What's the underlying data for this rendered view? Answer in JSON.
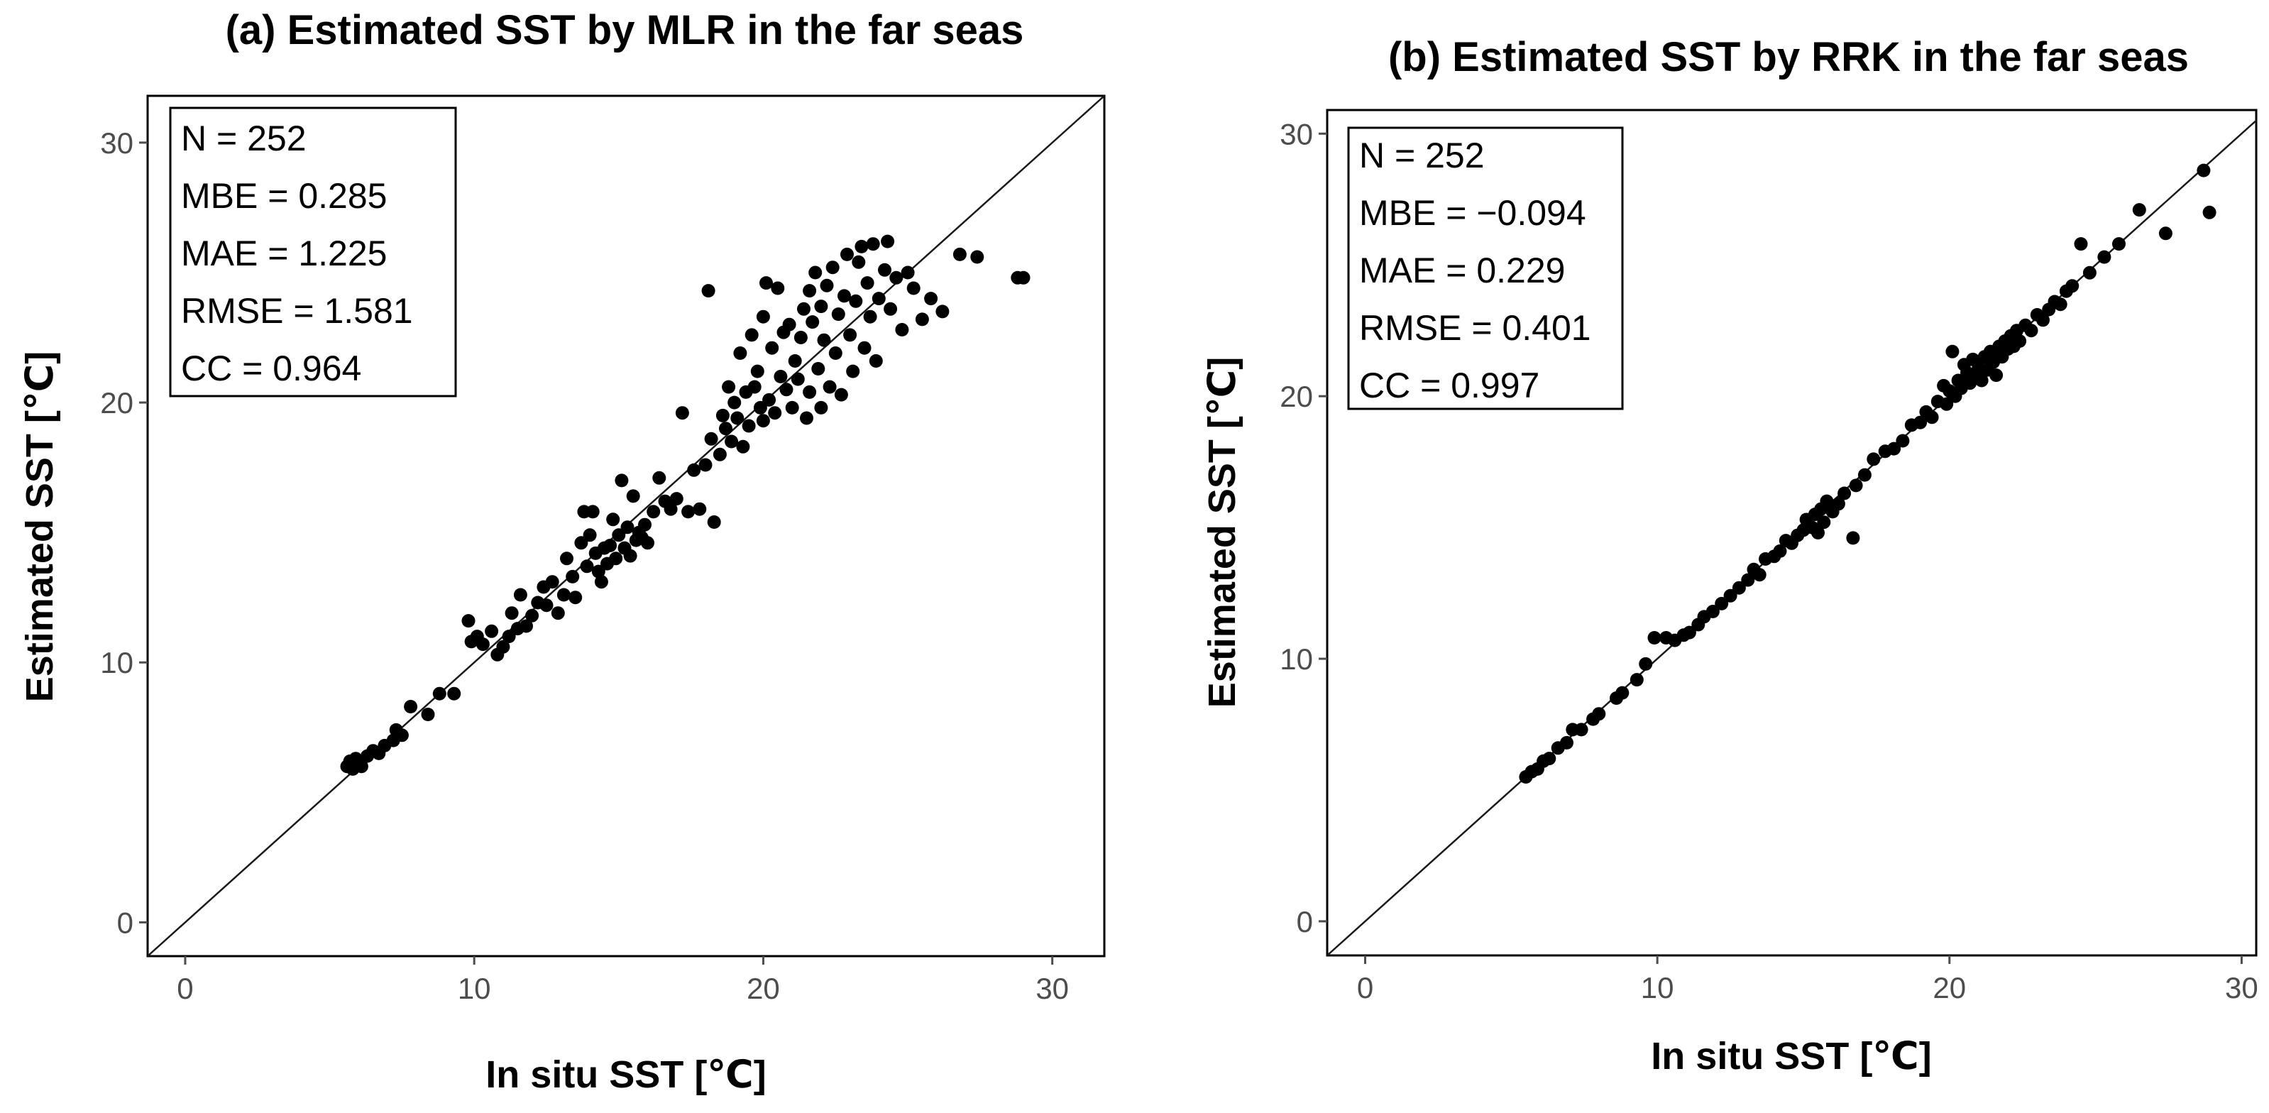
{
  "chart_data": [
    {
      "type": "scatter",
      "title": "(a) Estimated SST by MLR in the far seas",
      "xlabel": "In situ SST [℃]",
      "ylabel": "Estimated SST [℃]",
      "xlim": [
        -1.3,
        31.8
      ],
      "ylim": [
        -1.3,
        31.8
      ],
      "xticks": [
        0,
        10,
        20,
        30
      ],
      "yticks": [
        0,
        10,
        20,
        30
      ],
      "reference_line": "y = x",
      "grid": false,
      "stats_box": [
        "N = 252",
        "MBE = 0.285",
        "MAE = 1.225",
        "RMSE = 1.581",
        "CC = 0.964"
      ],
      "points": [
        [
          5.6,
          6.0
        ],
        [
          5.7,
          6.2
        ],
        [
          5.8,
          5.9
        ],
        [
          5.9,
          6.3
        ],
        [
          6.0,
          6.1
        ],
        [
          6.1,
          6.0
        ],
        [
          6.3,
          6.4
        ],
        [
          6.5,
          6.6
        ],
        [
          6.7,
          6.5
        ],
        [
          6.9,
          6.8
        ],
        [
          7.2,
          7.0
        ],
        [
          7.3,
          7.4
        ],
        [
          7.5,
          7.2
        ],
        [
          7.8,
          8.3
        ],
        [
          8.4,
          8.0
        ],
        [
          8.8,
          8.8
        ],
        [
          9.3,
          8.8
        ],
        [
          9.8,
          11.6
        ],
        [
          9.9,
          10.8
        ],
        [
          10.1,
          11.0
        ],
        [
          10.3,
          10.7
        ],
        [
          10.6,
          11.2
        ],
        [
          10.8,
          10.3
        ],
        [
          11.0,
          10.6
        ],
        [
          11.2,
          11.0
        ],
        [
          11.3,
          11.9
        ],
        [
          11.5,
          11.3
        ],
        [
          11.6,
          12.6
        ],
        [
          11.8,
          11.4
        ],
        [
          12.0,
          11.8
        ],
        [
          12.2,
          12.3
        ],
        [
          12.4,
          12.9
        ],
        [
          12.5,
          12.2
        ],
        [
          12.7,
          13.1
        ],
        [
          12.9,
          11.9
        ],
        [
          13.1,
          12.6
        ],
        [
          13.2,
          14.0
        ],
        [
          13.4,
          13.3
        ],
        [
          13.5,
          12.5
        ],
        [
          13.7,
          14.6
        ],
        [
          13.8,
          15.8
        ],
        [
          13.9,
          13.7
        ],
        [
          14.0,
          14.9
        ],
        [
          14.1,
          15.8
        ],
        [
          14.2,
          14.2
        ],
        [
          14.3,
          13.5
        ],
        [
          14.4,
          13.1
        ],
        [
          14.5,
          14.4
        ],
        [
          14.6,
          13.8
        ],
        [
          14.7,
          14.5
        ],
        [
          14.8,
          15.5
        ],
        [
          14.9,
          14.0
        ],
        [
          15.0,
          14.9
        ],
        [
          15.1,
          17.0
        ],
        [
          15.2,
          14.4
        ],
        [
          15.3,
          15.2
        ],
        [
          15.4,
          14.1
        ],
        [
          15.5,
          16.4
        ],
        [
          15.6,
          14.7
        ],
        [
          15.7,
          15.0
        ],
        [
          15.8,
          14.8
        ],
        [
          15.9,
          15.3
        ],
        [
          16.0,
          14.6
        ],
        [
          16.2,
          15.8
        ],
        [
          16.4,
          17.1
        ],
        [
          16.6,
          16.2
        ],
        [
          16.8,
          15.9
        ],
        [
          17.0,
          16.3
        ],
        [
          17.2,
          19.6
        ],
        [
          17.4,
          15.8
        ],
        [
          17.6,
          17.4
        ],
        [
          17.8,
          15.9
        ],
        [
          18.0,
          17.6
        ],
        [
          18.1,
          24.3
        ],
        [
          18.2,
          18.6
        ],
        [
          18.3,
          15.4
        ],
        [
          18.5,
          18.0
        ],
        [
          18.6,
          19.5
        ],
        [
          18.7,
          19.0
        ],
        [
          18.8,
          20.6
        ],
        [
          18.9,
          18.5
        ],
        [
          19.0,
          20.0
        ],
        [
          19.1,
          19.4
        ],
        [
          19.2,
          21.9
        ],
        [
          19.3,
          18.3
        ],
        [
          19.4,
          20.4
        ],
        [
          19.5,
          19.1
        ],
        [
          19.6,
          22.6
        ],
        [
          19.7,
          20.6
        ],
        [
          19.8,
          21.2
        ],
        [
          19.9,
          19.8
        ],
        [
          20.0,
          19.3
        ],
        [
          20.0,
          23.3
        ],
        [
          20.1,
          24.6
        ],
        [
          20.2,
          20.1
        ],
        [
          20.3,
          22.1
        ],
        [
          20.4,
          19.6
        ],
        [
          20.5,
          24.4
        ],
        [
          20.6,
          21.0
        ],
        [
          20.7,
          22.7
        ],
        [
          20.8,
          20.5
        ],
        [
          20.9,
          23.0
        ],
        [
          21.0,
          19.8
        ],
        [
          21.1,
          21.6
        ],
        [
          21.2,
          20.9
        ],
        [
          21.3,
          22.5
        ],
        [
          21.4,
          23.6
        ],
        [
          21.5,
          19.4
        ],
        [
          21.6,
          24.3
        ],
        [
          21.6,
          20.4
        ],
        [
          21.7,
          23.1
        ],
        [
          21.8,
          25.0
        ],
        [
          21.9,
          21.3
        ],
        [
          22.0,
          23.7
        ],
        [
          22.0,
          19.8
        ],
        [
          22.1,
          22.4
        ],
        [
          22.2,
          24.5
        ],
        [
          22.3,
          20.6
        ],
        [
          22.4,
          25.2
        ],
        [
          22.5,
          21.9
        ],
        [
          22.6,
          23.4
        ],
        [
          22.7,
          20.3
        ],
        [
          22.8,
          24.1
        ],
        [
          22.9,
          25.7
        ],
        [
          23.0,
          22.6
        ],
        [
          23.1,
          21.2
        ],
        [
          23.2,
          23.9
        ],
        [
          23.3,
          25.4
        ],
        [
          23.4,
          26.0
        ],
        [
          23.5,
          22.1
        ],
        [
          23.6,
          24.6
        ],
        [
          23.7,
          23.3
        ],
        [
          23.8,
          26.1
        ],
        [
          23.9,
          21.6
        ],
        [
          24.0,
          24.0
        ],
        [
          24.2,
          25.1
        ],
        [
          24.3,
          26.2
        ],
        [
          24.4,
          23.6
        ],
        [
          24.6,
          24.8
        ],
        [
          24.8,
          22.8
        ],
        [
          25.0,
          25.0
        ],
        [
          25.2,
          24.4
        ],
        [
          25.5,
          23.2
        ],
        [
          25.8,
          24.0
        ],
        [
          26.2,
          23.5
        ],
        [
          26.8,
          25.7
        ],
        [
          27.4,
          25.6
        ],
        [
          28.8,
          24.8
        ],
        [
          29.0,
          24.8
        ]
      ]
    },
    {
      "type": "scatter",
      "title": "(b) Estimated SST by RRK in the far seas",
      "xlabel": "In situ SST [℃]",
      "ylabel": "Estimated SST [℃]",
      "xlim": [
        -1.3,
        30.5
      ],
      "ylim": [
        -1.3,
        30.9
      ],
      "xticks": [
        0,
        10,
        20,
        30
      ],
      "yticks": [
        0,
        10,
        20,
        30
      ],
      "reference_line": "y = x",
      "grid": false,
      "stats_box": [
        "N = 252",
        "MBE = −0.094",
        "MAE = 0.229",
        "RMSE = 0.401",
        "CC = 0.997"
      ],
      "points": [
        [
          5.5,
          5.5
        ],
        [
          5.7,
          5.7
        ],
        [
          5.9,
          5.8
        ],
        [
          6.1,
          6.1
        ],
        [
          6.3,
          6.2
        ],
        [
          6.6,
          6.6
        ],
        [
          6.9,
          6.8
        ],
        [
          7.1,
          7.3
        ],
        [
          7.4,
          7.3
        ],
        [
          7.8,
          7.7
        ],
        [
          8.0,
          7.9
        ],
        [
          8.6,
          8.5
        ],
        [
          8.8,
          8.7
        ],
        [
          9.3,
          9.2
        ],
        [
          9.6,
          9.8
        ],
        [
          9.9,
          10.8
        ],
        [
          10.3,
          10.8
        ],
        [
          10.6,
          10.7
        ],
        [
          10.9,
          10.9
        ],
        [
          11.1,
          11.0
        ],
        [
          11.4,
          11.3
        ],
        [
          11.6,
          11.6
        ],
        [
          11.9,
          11.8
        ],
        [
          12.2,
          12.1
        ],
        [
          12.5,
          12.4
        ],
        [
          12.8,
          12.7
        ],
        [
          13.1,
          13.0
        ],
        [
          13.3,
          13.4
        ],
        [
          13.5,
          13.2
        ],
        [
          13.7,
          13.8
        ],
        [
          14.0,
          13.9
        ],
        [
          14.2,
          14.1
        ],
        [
          14.4,
          14.5
        ],
        [
          14.6,
          14.4
        ],
        [
          14.8,
          14.7
        ],
        [
          15.0,
          14.9
        ],
        [
          15.1,
          15.3
        ],
        [
          15.3,
          15.0
        ],
        [
          15.4,
          15.5
        ],
        [
          15.5,
          14.8
        ],
        [
          15.6,
          15.7
        ],
        [
          15.7,
          15.2
        ],
        [
          15.8,
          16.0
        ],
        [
          16.0,
          15.6
        ],
        [
          16.2,
          15.9
        ],
        [
          16.4,
          16.3
        ],
        [
          16.7,
          14.6
        ],
        [
          16.8,
          16.6
        ],
        [
          17.1,
          17.0
        ],
        [
          17.4,
          17.6
        ],
        [
          17.8,
          17.9
        ],
        [
          18.1,
          18.0
        ],
        [
          18.4,
          18.3
        ],
        [
          18.7,
          18.9
        ],
        [
          19.0,
          19.0
        ],
        [
          19.2,
          19.4
        ],
        [
          19.4,
          19.2
        ],
        [
          19.6,
          19.8
        ],
        [
          19.8,
          20.4
        ],
        [
          19.9,
          19.7
        ],
        [
          20.0,
          20.2
        ],
        [
          20.1,
          21.7
        ],
        [
          20.2,
          20.0
        ],
        [
          20.3,
          20.6
        ],
        [
          20.4,
          20.3
        ],
        [
          20.5,
          21.2
        ],
        [
          20.6,
          20.9
        ],
        [
          20.7,
          20.5
        ],
        [
          20.8,
          21.4
        ],
        [
          20.9,
          20.8
        ],
        [
          21.0,
          21.1
        ],
        [
          21.1,
          20.6
        ],
        [
          21.2,
          21.5
        ],
        [
          21.3,
          21.0
        ],
        [
          21.4,
          21.7
        ],
        [
          21.5,
          21.3
        ],
        [
          21.6,
          20.8
        ],
        [
          21.7,
          21.9
        ],
        [
          21.8,
          21.5
        ],
        [
          21.9,
          22.1
        ],
        [
          22.0,
          21.8
        ],
        [
          22.1,
          22.3
        ],
        [
          22.2,
          21.9
        ],
        [
          22.3,
          22.5
        ],
        [
          22.4,
          22.1
        ],
        [
          22.6,
          22.7
        ],
        [
          22.8,
          22.5
        ],
        [
          23.0,
          23.1
        ],
        [
          23.2,
          22.9
        ],
        [
          23.4,
          23.3
        ],
        [
          23.6,
          23.6
        ],
        [
          23.8,
          23.5
        ],
        [
          24.0,
          24.0
        ],
        [
          24.2,
          24.2
        ],
        [
          24.5,
          25.8
        ],
        [
          24.8,
          24.7
        ],
        [
          25.3,
          25.3
        ],
        [
          25.8,
          25.8
        ],
        [
          26.5,
          27.1
        ],
        [
          27.4,
          26.2
        ],
        [
          28.7,
          28.6
        ],
        [
          28.9,
          27.0
        ]
      ]
    }
  ]
}
